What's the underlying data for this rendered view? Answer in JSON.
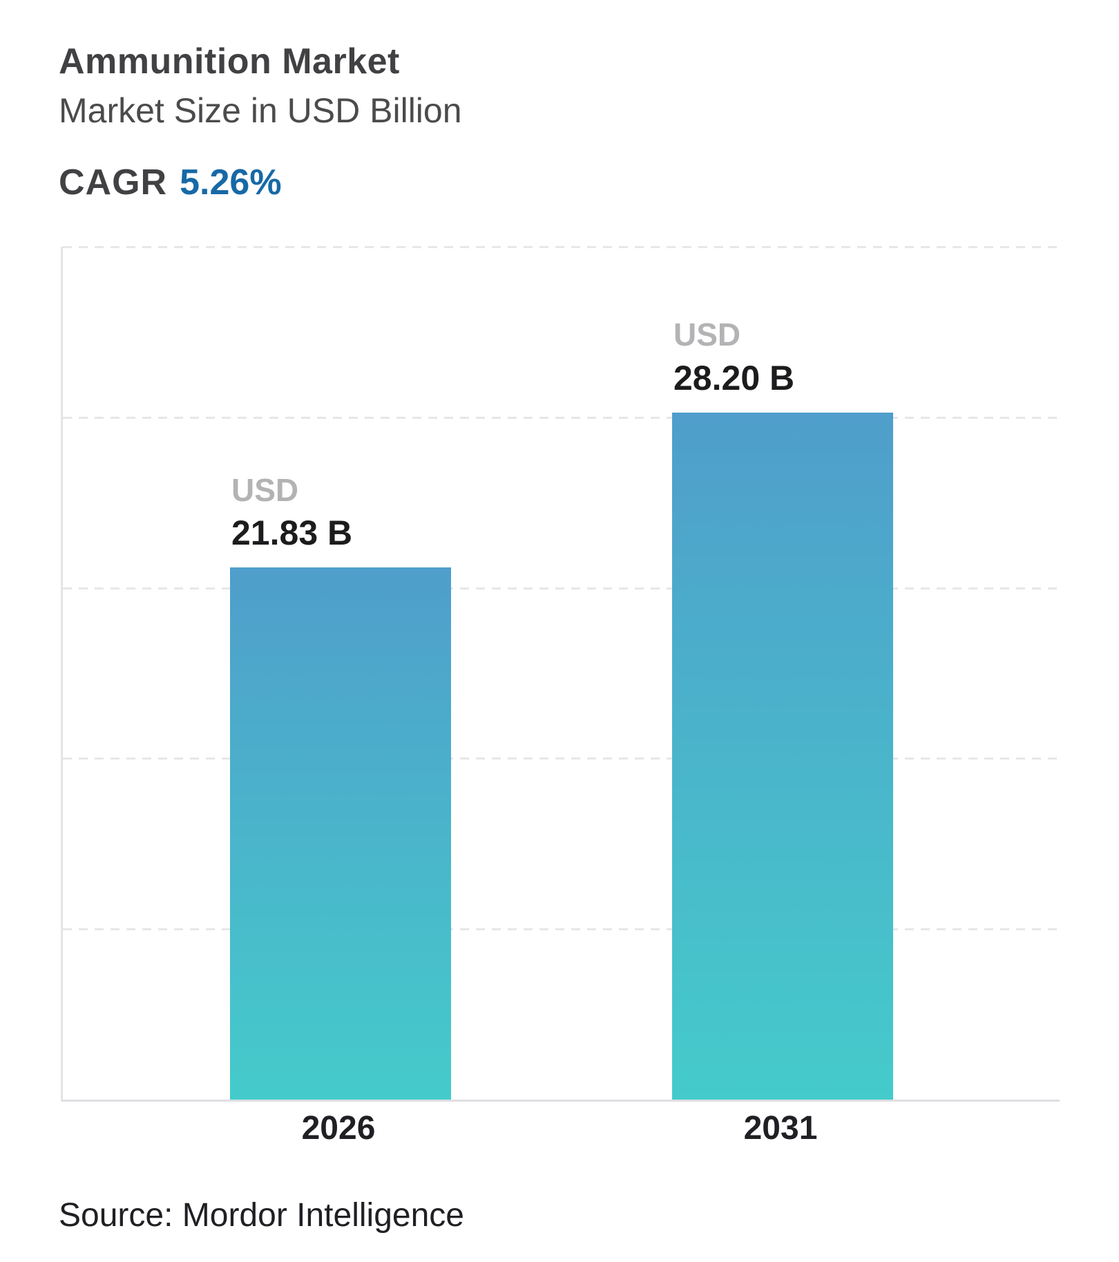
{
  "chart_data": {
    "type": "bar",
    "title": "Ammunition Market",
    "subtitle": "Market Size in USD Billion",
    "cagr_label": "CAGR",
    "cagr_value": "5.26%",
    "categories": [
      "2026",
      "2031"
    ],
    "values": [
      21.83,
      28.2
    ],
    "bar_labels": [
      {
        "prefix": "USD",
        "text": "21.83 B"
      },
      {
        "prefix": "USD",
        "text": "28.20 B"
      }
    ],
    "xlabel": "",
    "ylabel": "",
    "ylim": [
      0,
      35
    ],
    "gridline_values": [
      7,
      14,
      21,
      28,
      35
    ],
    "grid": "horizontal-dashed",
    "legend": "none",
    "source": "Source: Mordor Intelligence",
    "colors": {
      "bar_gradient_top": "#4f9ecb",
      "bar_gradient_bottom": "#45cbcb",
      "cagr_accent": "#1769a6",
      "usd_prefix_gray": "#b3b3b5",
      "value_text": "#1c1c1e",
      "title_text": "#414144",
      "grid_color": "#e7e7ea"
    }
  }
}
